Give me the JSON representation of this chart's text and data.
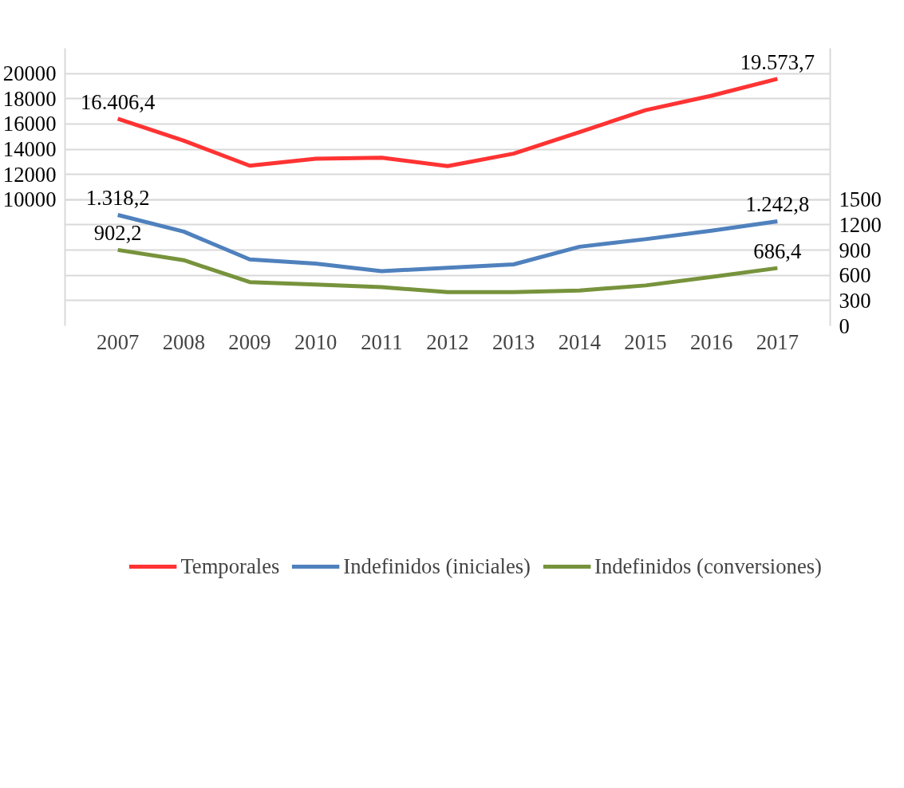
{
  "chart_data": {
    "type": "line",
    "categories": [
      "2007",
      "2008",
      "2009",
      "2010",
      "2011",
      "2012",
      "2013",
      "2014",
      "2015",
      "2016",
      "2017"
    ],
    "ylim": [
      0,
      22000
    ],
    "yticks": [
      10000,
      12000,
      14000,
      16000,
      18000,
      20000
    ],
    "y2lim": [
      0,
      3300
    ],
    "y2ticks": [
      0,
      300,
      600,
      900,
      1200,
      1500
    ],
    "grid": "y",
    "legend": "bottom",
    "line_style": "solid",
    "marker": "none",
    "series": [
      {
        "name": "Temporales",
        "color": "#ff3333",
        "axis": "y",
        "values": [
          16406.4,
          14670,
          12690,
          13240,
          13320,
          12660,
          13650,
          15360,
          17090,
          18240,
          19573.7
        ],
        "value_labels": [
          "16.406,4",
          null,
          null,
          null,
          null,
          null,
          null,
          null,
          null,
          null,
          "19.573,7"
        ]
      },
      {
        "name": "Indefinidos (iniciales)",
        "color": "#4f81bd",
        "axis": "y2",
        "values": [
          1318.2,
          1120,
          790,
          740,
          650,
          690,
          730,
          940,
          1030,
          1130,
          1242.8
        ],
        "value_labels": [
          "1.318,2",
          null,
          null,
          null,
          null,
          null,
          null,
          null,
          null,
          null,
          "1.242,8"
        ]
      },
      {
        "name": "Indefinidos (conversiones)",
        "color": "#77933c",
        "axis": "y2",
        "values": [
          902.2,
          780,
          520,
          490,
          460,
          400,
          400,
          420,
          480,
          580,
          686.4
        ],
        "value_labels": [
          "902,2",
          null,
          null,
          null,
          null,
          null,
          null,
          null,
          null,
          null,
          "686,4"
        ]
      }
    ]
  }
}
